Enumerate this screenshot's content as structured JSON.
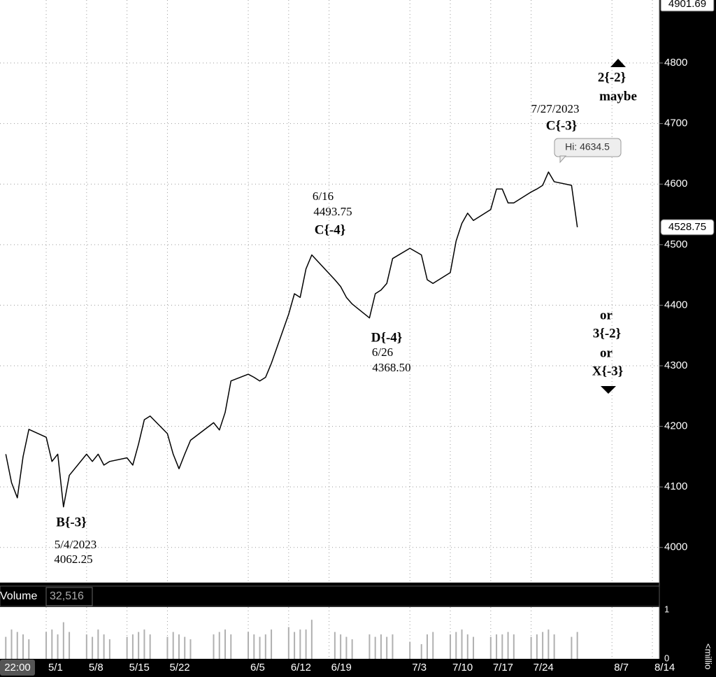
{
  "chart_data": {
    "type": "line",
    "color": "#000000",
    "x": [
      "4/24",
      "4/25",
      "4/26",
      "4/27",
      "4/28",
      "5/1",
      "5/2",
      "5/3",
      "5/4",
      "5/5",
      "5/8",
      "5/9",
      "5/10",
      "5/11",
      "5/12",
      "5/15",
      "5/16",
      "5/17",
      "5/18",
      "5/19",
      "5/22",
      "5/23",
      "5/24",
      "5/25",
      "5/26",
      "5/30",
      "5/31",
      "6/1",
      "6/2",
      "6/5",
      "6/6",
      "6/7",
      "6/8",
      "6/9",
      "6/12",
      "6/13",
      "6/14",
      "6/15",
      "6/16",
      "6/20",
      "6/21",
      "6/22",
      "6/23",
      "6/26",
      "6/27",
      "6/28",
      "6/29",
      "6/30",
      "7/3",
      "7/5",
      "7/6",
      "7/7",
      "7/10",
      "7/11",
      "7/12",
      "7/13",
      "7/14",
      "7/17",
      "7/18",
      "7/19",
      "7/20",
      "7/21",
      "7/24",
      "7/25",
      "7/26",
      "7/27",
      "7/28",
      "7/31",
      "8/1"
    ],
    "values": [
      4154,
      4107,
      4082,
      4150,
      4195,
      4182,
      4142,
      4154,
      4067,
      4119,
      4154,
      4142,
      4154,
      4136,
      4142,
      4148,
      4136,
      4171,
      4211,
      4217,
      4188,
      4154,
      4130,
      4154,
      4177,
      4206,
      4194,
      4223,
      4275,
      4286,
      4281,
      4275,
      4281,
      4304,
      4385,
      4419,
      4413,
      4460,
      4483,
      4442,
      4431,
      4413,
      4402,
      4379,
      4419,
      4425,
      4436,
      4477,
      4494,
      4483,
      4442,
      4436,
      4454,
      4506,
      4535,
      4552,
      4540,
      4558,
      4592,
      4592,
      4569,
      4569,
      4587,
      4592,
      4598,
      4620,
      4604,
      4598,
      4528.75
    ],
    "xlim": [
      "4/23",
      "8/14"
    ],
    "xticks": [
      "5/1",
      "5/8",
      "5/15",
      "5/22",
      "6/5",
      "6/12",
      "6/19",
      "7/3",
      "7/10",
      "7/17",
      "7/24",
      "8/7",
      "8/14"
    ],
    "x_cursor_label": "22:00",
    "ylim": [
      3942,
      4901.69
    ],
    "yticks": [
      4000,
      4100,
      4200,
      4300,
      4400,
      4500,
      4600,
      4700,
      4800
    ],
    "grid": true,
    "volume": {
      "label": "Volume",
      "readout": "32,516",
      "unit_label": "<millio",
      "color": "#b0b0b0",
      "values": [
        0.45,
        0.6,
        0.55,
        0.5,
        0.4,
        0.55,
        0.6,
        0.5,
        0.75,
        0.55,
        0.5,
        0.45,
        0.6,
        0.5,
        0.4,
        0.45,
        0.5,
        0.55,
        0.6,
        0.5,
        0.45,
        0.55,
        0.5,
        0.45,
        0.4,
        0.5,
        0.55,
        0.6,
        0.5,
        0.55,
        0.5,
        0.45,
        0.5,
        0.6,
        0.65,
        0.55,
        0.6,
        0.6,
        0.8,
        0.55,
        0.5,
        0.45,
        0.4,
        0.5,
        0.45,
        0.5,
        0.45,
        0.5,
        0.35,
        0.3,
        0.5,
        0.55,
        0.5,
        0.55,
        0.6,
        0.5,
        0.45,
        0.45,
        0.5,
        0.5,
        0.55,
        0.5,
        0.45,
        0.5,
        0.55,
        0.6,
        0.5,
        0.45,
        0.55
      ],
      "ylim": [
        0,
        1.06
      ],
      "yticks": [
        0,
        1
      ]
    },
    "hi_label": "Hi: 4634.5",
    "annotations": [
      {
        "lines": [
          "B{-3}",
          "5/4/2023",
          "4062.25"
        ]
      },
      {
        "lines": [
          "6/16",
          "4493.75",
          "C{-4}"
        ]
      },
      {
        "lines": [
          "D{-4}",
          "6/26",
          "4368.50"
        ]
      },
      {
        "lines": [
          "7/27/2023",
          "C{-3}"
        ]
      },
      {
        "lines": [
          "2{-2}",
          "maybe"
        ]
      },
      {
        "lines": [
          "or",
          "3{-2}",
          "or",
          "X{-3}"
        ]
      }
    ]
  }
}
